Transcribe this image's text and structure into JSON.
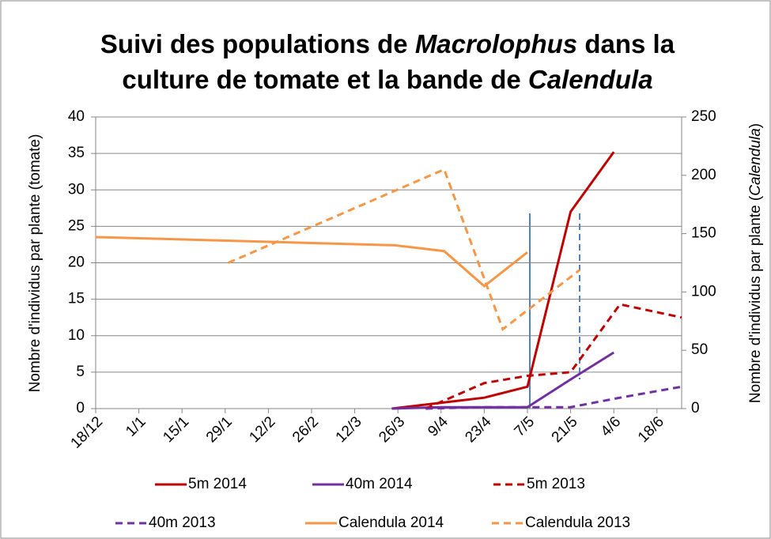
{
  "chart_data": {
    "type": "line",
    "title": [
      [
        "Suivi des populations de ",
        "Macrolophus",
        " dans la"
      ],
      [
        "culture de tomate et la bande de ",
        "Calendula"
      ]
    ],
    "ylabel": "Nombre d'individus par plante (tomate)",
    "y2label": [
      "Nombre d'individus par plante (",
      "Calendula",
      ")"
    ],
    "xlim": [
      0,
      190
    ],
    "xticks": [
      {
        "value": 0,
        "label": "18/12"
      },
      {
        "value": 14,
        "label": "1/1"
      },
      {
        "value": 28,
        "label": "15/1"
      },
      {
        "value": 42,
        "label": "29/1"
      },
      {
        "value": 56,
        "label": "12/2"
      },
      {
        "value": 70,
        "label": "26/2"
      },
      {
        "value": 84,
        "label": "12/3"
      },
      {
        "value": 98,
        "label": "26/3"
      },
      {
        "value": 112,
        "label": "9/4"
      },
      {
        "value": 126,
        "label": "23/4"
      },
      {
        "value": 140,
        "label": "7/5"
      },
      {
        "value": 154,
        "label": "21/5"
      },
      {
        "value": 168,
        "label": "4/6"
      },
      {
        "value": 182,
        "label": "18/6"
      }
    ],
    "ylim": [
      0,
      40
    ],
    "yticks": [
      0,
      5,
      10,
      15,
      20,
      25,
      30,
      35,
      40
    ],
    "y2lim": [
      0,
      250
    ],
    "y2ticks": [
      0,
      50,
      100,
      150,
      200,
      250
    ],
    "grid": true,
    "series": [
      {
        "name": "5m 2014",
        "color": "#c00000",
        "dashed": false,
        "x": [
          96,
          112,
          126,
          140,
          154,
          168
        ],
        "values": [
          0,
          0.8,
          1.5,
          3,
          27,
          35.2
        ]
      },
      {
        "name": "40m 2014",
        "color": "#7030a0",
        "dashed": false,
        "x": [
          96,
          112,
          126,
          140,
          154,
          168
        ],
        "values": [
          0,
          0.2,
          0.2,
          0.2,
          4,
          7.7
        ]
      },
      {
        "name": "5m 2013",
        "color": "#c00000",
        "dashed": true,
        "x": [
          107,
          126,
          140,
          154,
          170,
          190
        ],
        "values": [
          0,
          3.5,
          4.5,
          5,
          14.3,
          12.5
        ]
      },
      {
        "name": "40m 2013",
        "color": "#7030a0",
        "dashed": true,
        "x": [
          107,
          126,
          140,
          154,
          170,
          190
        ],
        "values": [
          0,
          0.2,
          0.2,
          0.2,
          1.5,
          3
        ]
      },
      {
        "name": "Calendula 2014",
        "color": "#f79646",
        "dashed": false,
        "axis": "y2",
        "x": [
          0,
          97,
          113,
          126,
          140
        ],
        "values": [
          147,
          140,
          135,
          105,
          134
        ]
      },
      {
        "name": "Calendula 2013",
        "color": "#f79646",
        "dashed": true,
        "axis": "y2",
        "x": [
          43,
          113,
          132,
          157
        ],
        "values": [
          125,
          205,
          68,
          119
        ]
      }
    ]
  }
}
